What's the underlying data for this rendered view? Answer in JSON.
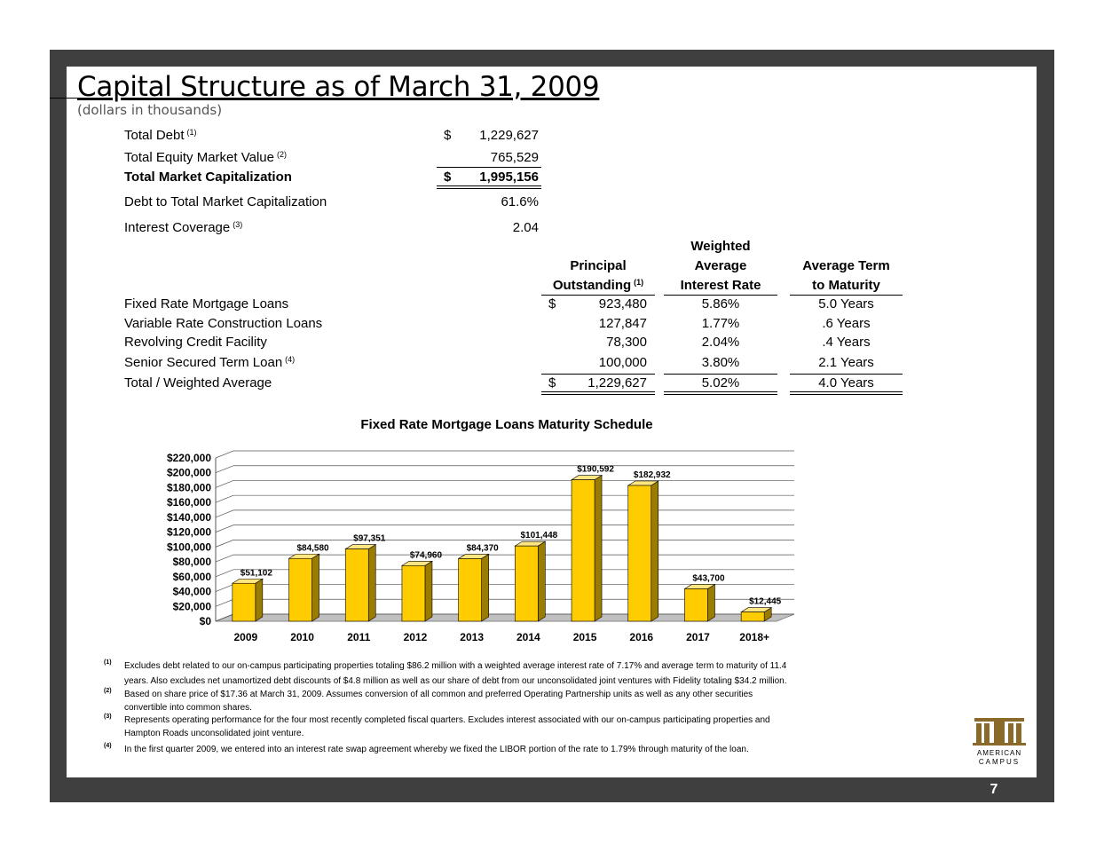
{
  "header": {
    "title": "Capital Structure as of March 31, 2009",
    "subtitle": "(dollars in thousands)"
  },
  "summary": [
    {
      "label": "Total Debt",
      "note": "(1)",
      "currency": "$",
      "value": "1,229,627"
    },
    {
      "label": "Total Equity Market Value",
      "note": "(2)",
      "value": "765,529"
    },
    {
      "label": "Total Market Capitalization",
      "currency": "$",
      "value": "1,995,156"
    },
    {
      "label": "Debt to Total Market Capitalization",
      "value": "61.6%"
    },
    {
      "label": "Interest Coverage",
      "note": "(3)",
      "value": "2.04"
    }
  ],
  "table": {
    "headers": [
      {
        "lines": [
          "Principal",
          "Outstanding"
        ],
        "note": "(1)"
      },
      {
        "lines": [
          "Weighted",
          "Average",
          "Interest Rate"
        ]
      },
      {
        "lines": [
          "Average Term",
          "to Maturity"
        ]
      }
    ],
    "rows": [
      {
        "label": "Fixed Rate Mortgage Loans",
        "currency": "$",
        "principal": "923,480",
        "rate": "5.86%",
        "term": "5.0 Years"
      },
      {
        "label": "Variable Rate Construction Loans",
        "principal": "127,847",
        "rate": "1.77%",
        "term": ".6 Years"
      },
      {
        "label": "Revolving Credit Facility",
        "principal": "78,300",
        "rate": "2.04%",
        "term": ".4 Years"
      },
      {
        "label": "Senior Secured Term Loan",
        "note": "(4)",
        "principal": "100,000",
        "rate": "3.80%",
        "term": "2.1 Years"
      },
      {
        "label": "Total / Weighted Average",
        "currency": "$",
        "principal": "1,229,627",
        "rate": "5.02%",
        "term": "4.0 Years"
      }
    ]
  },
  "chart_data": {
    "type": "bar",
    "title": "Fixed Rate Mortgage Loans Maturity Schedule",
    "categories": [
      "2009",
      "2010",
      "2011",
      "2012",
      "2013",
      "2014",
      "2015",
      "2016",
      "2017",
      "2018+"
    ],
    "values": [
      51102,
      84580,
      97351,
      74960,
      84370,
      101448,
      190592,
      182932,
      43700,
      12445
    ],
    "value_labels": [
      "$51,102",
      "$84,580",
      "$97,351",
      "$74,960",
      "$84,370",
      "$101,448",
      "$190,592",
      "$182,932",
      "$43,700",
      "$12,445"
    ],
    "color": "#ffcc00",
    "ylim": [
      0,
      220000
    ],
    "yticks": [
      {
        "value": 0,
        "label": "$0"
      },
      {
        "value": 20000,
        "label": "$20,000"
      },
      {
        "value": 40000,
        "label": "$40,000"
      },
      {
        "value": 60000,
        "label": "$60,000"
      },
      {
        "value": 80000,
        "label": "$80,000"
      },
      {
        "value": 100000,
        "label": "$100,000"
      },
      {
        "value": 120000,
        "label": "$120,000"
      },
      {
        "value": 140000,
        "label": "$140,000"
      },
      {
        "value": 160000,
        "label": "$160,000"
      },
      {
        "value": 180000,
        "label": "$180,000"
      },
      {
        "value": 200000,
        "label": "$200,000"
      },
      {
        "value": 220000,
        "label": "$220,000"
      }
    ],
    "grid": true
  },
  "footnotes": [
    {
      "marker": "(1)",
      "lines": [
        "Excludes debt related to our on-campus participating properties totaling $86.2 million with a weighted average interest rate of 7.17% and average term to maturity of 11.4",
        "years. Also excludes net unamortized debt discounts of $4.8 million as well as our share of debt from our unconsolidated joint ventures with Fidelity totaling $34.2 million."
      ]
    },
    {
      "marker": "(2)",
      "lines": [
        "Based on share price of $17.36 at March 31, 2009. Assumes conversion of all common and preferred Operating Partnership units as well as any other securities",
        "convertible into common shares."
      ]
    },
    {
      "marker": "(3)",
      "lines": [
        "Represents operating performance for the four most recently completed fiscal quarters. Excludes interest associated with our on-campus participating properties and",
        "Hampton Roads unconsolidated joint venture."
      ]
    },
    {
      "marker": "(4)",
      "lines": [
        "In the first quarter 2009, we entered into an interest rate swap agreement whereby we fixed the LIBOR portion of the rate to 1.79% through maturity of the loan."
      ]
    }
  ],
  "logo": {
    "line1": "AMERICAN",
    "line2": "CAMPUS"
  },
  "page_number": "7"
}
